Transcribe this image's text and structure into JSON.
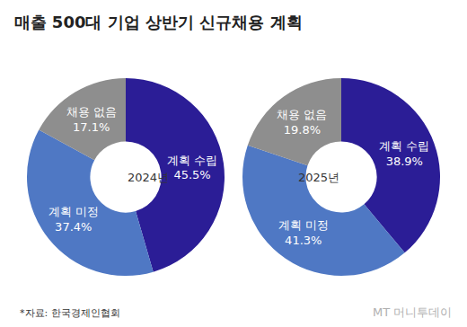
{
  "chart_data": {
    "type": "pie",
    "title": "매출 500대 기업 상반기 신규채용 계획",
    "categories": [
      "계획 수립",
      "계획 미정",
      "채용 없음"
    ],
    "colors": [
      "#2b1d96",
      "#4f78c4",
      "#8e8e8e"
    ],
    "data_labels": true,
    "series": [
      {
        "name": "2024년",
        "values": [
          45.5,
          37.4,
          17.1
        ],
        "value_labels": [
          "45.5%",
          "37.4%",
          "17.1%"
        ]
      },
      {
        "name": "2025년",
        "values": [
          38.9,
          41.3,
          19.8
        ],
        "value_labels": [
          "38.9%",
          "41.3%",
          "19.8%"
        ]
      }
    ],
    "annotations": [
      "*자료: 한국경제인협회",
      "MT 머니투데이"
    ]
  }
}
